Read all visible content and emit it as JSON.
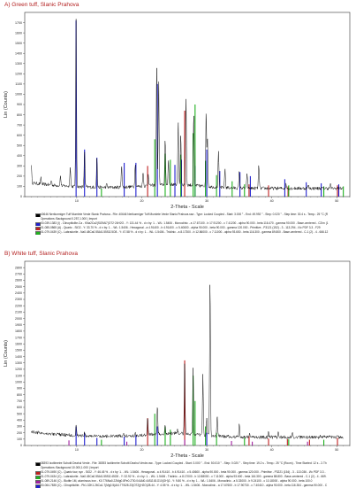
{
  "chart_data": [
    {
      "type": "line",
      "title": "A) Green tuff, Slanic Prahova",
      "xlabel": "2-Theta - Scale",
      "ylabel": "Lin (Counts)",
      "xlim": [
        2,
        52
      ],
      "ylim": [
        0,
        1800
      ],
      "xticks": [
        10,
        20,
        30,
        40,
        50
      ],
      "yticks": [
        0,
        100,
        200,
        300,
        400,
        500,
        600,
        700,
        800,
        900,
        1000,
        1100,
        1200,
        1300,
        1400,
        1500,
        1600,
        1700
      ],
      "pattern_peaks": [
        {
          "x": 3.0,
          "y": 320
        },
        {
          "x": 4.5,
          "y": 180
        },
        {
          "x": 6.1,
          "y": 160
        },
        {
          "x": 7.5,
          "y": 200
        },
        {
          "x": 9.0,
          "y": 300
        },
        {
          "x": 9.9,
          "y": 1720
        },
        {
          "x": 11.2,
          "y": 460
        },
        {
          "x": 13.1,
          "y": 380
        },
        {
          "x": 14.6,
          "y": 120
        },
        {
          "x": 16.9,
          "y": 320
        },
        {
          "x": 19.0,
          "y": 330
        },
        {
          "x": 20.2,
          "y": 250
        },
        {
          "x": 21.0,
          "y": 230
        },
        {
          "x": 22.3,
          "y": 1300
        },
        {
          "x": 22.6,
          "y": 1180
        },
        {
          "x": 23.6,
          "y": 560
        },
        {
          "x": 24.1,
          "y": 360
        },
        {
          "x": 25.6,
          "y": 760
        },
        {
          "x": 26.0,
          "y": 620
        },
        {
          "x": 26.8,
          "y": 980
        },
        {
          "x": 28.0,
          "y": 820
        },
        {
          "x": 29.9,
          "y": 860
        },
        {
          "x": 30.1,
          "y": 600
        },
        {
          "x": 31.8,
          "y": 450
        },
        {
          "x": 32.8,
          "y": 280
        },
        {
          "x": 35.0,
          "y": 240
        },
        {
          "x": 36.2,
          "y": 230
        },
        {
          "x": 38.0,
          "y": 320
        },
        {
          "x": 42.2,
          "y": 120
        },
        {
          "x": 45.6,
          "y": 110
        },
        {
          "x": 49.0,
          "y": 120
        }
      ],
      "sticks": [
        {
          "pattern": "Clinoptilolite-Ca",
          "color": "#2020d0",
          "peaks": [
            [
              9.9,
              1720
            ],
            [
              11.2,
              460
            ],
            [
              13.1,
              380
            ],
            [
              17.3,
              330
            ],
            [
              19.1,
              330
            ],
            [
              22.4,
              1100
            ],
            [
              25.1,
              310
            ],
            [
              26.1,
              360
            ],
            [
              28.2,
              300
            ],
            [
              30.0,
              460
            ],
            [
              32.0,
              250
            ],
            [
              35.1,
              240
            ],
            [
              36.7,
              200
            ],
            [
              42.0,
              170
            ],
            [
              45.3,
              140
            ],
            [
              47.6,
              130
            ],
            [
              50.3,
              120
            ]
          ]
        },
        {
          "pattern": "Quartz, low",
          "color": "#c02020",
          "peaks": [
            [
              20.9,
              300
            ],
            [
              26.6,
              840
            ],
            [
              36.5,
              120
            ],
            [
              39.5,
              110
            ],
            [
              42.5,
              100
            ],
            [
              50.1,
              110
            ]
          ]
        },
        {
          "pattern": "Labradorite",
          "color": "#20b020",
          "peaks": [
            [
              13.8,
              80
            ],
            [
              22.0,
              560
            ],
            [
              23.6,
              420
            ],
            [
              24.4,
              360
            ],
            [
              26.0,
              410
            ],
            [
              27.9,
              620
            ],
            [
              28.2,
              900
            ],
            [
              29.8,
              350
            ],
            [
              31.5,
              210
            ],
            [
              33.9,
              150
            ],
            [
              35.8,
              120
            ],
            [
              42.6,
              110
            ],
            [
              48.0,
              100
            ],
            [
              51.0,
              100
            ]
          ]
        }
      ]
    },
    {
      "type": "line",
      "title": "B) White tuff, Slanic Prahova",
      "xlabel": "2-Theta - Scale",
      "ylabel": "Lin (Counts)",
      "xlim": [
        2,
        52
      ],
      "ylim": [
        0,
        2900
      ],
      "xticks": [
        10,
        20,
        30,
        40,
        50
      ],
      "yticks": [
        0,
        100,
        200,
        300,
        400,
        500,
        600,
        700,
        800,
        900,
        1000,
        1100,
        1200,
        1300,
        1400,
        1500,
        1600,
        1700,
        1800,
        1900,
        2000,
        2100,
        2200,
        2300,
        2400,
        2500,
        2600,
        2700,
        2800
      ],
      "pattern_peaks": [
        {
          "x": 9.9,
          "y": 300
        },
        {
          "x": 11.2,
          "y": 200
        },
        {
          "x": 13.1,
          "y": 140
        },
        {
          "x": 17.2,
          "y": 170
        },
        {
          "x": 19.0,
          "y": 190
        },
        {
          "x": 20.9,
          "y": 430
        },
        {
          "x": 22.4,
          "y": 640
        },
        {
          "x": 23.6,
          "y": 300
        },
        {
          "x": 25.5,
          "y": 260
        },
        {
          "x": 26.6,
          "y": 1340
        },
        {
          "x": 27.9,
          "y": 1200
        },
        {
          "x": 29.4,
          "y": 1100
        },
        {
          "x": 30.0,
          "y": 440
        },
        {
          "x": 30.5,
          "y": 2650
        },
        {
          "x": 31.6,
          "y": 480
        },
        {
          "x": 35.0,
          "y": 330
        },
        {
          "x": 36.6,
          "y": 180
        },
        {
          "x": 39.5,
          "y": 200
        },
        {
          "x": 41.0,
          "y": 220
        },
        {
          "x": 43.2,
          "y": 200
        },
        {
          "x": 47.5,
          "y": 150
        },
        {
          "x": 50.1,
          "y": 140
        }
      ],
      "sticks": [
        {
          "pattern": "Quartz low",
          "color": "#c02020",
          "peaks": [
            [
              20.9,
              430
            ],
            [
              26.6,
              1340
            ],
            [
              36.5,
              150
            ],
            [
              39.5,
              110
            ],
            [
              42.4,
              100
            ],
            [
              45.8,
              90
            ],
            [
              50.1,
              120
            ]
          ]
        },
        {
          "pattern": "Labradorite",
          "color": "#20b020",
          "peaks": [
            [
              13.8,
              90
            ],
            [
              22.0,
              500
            ],
            [
              23.6,
              300
            ],
            [
              24.4,
              250
            ],
            [
              27.9,
              1100
            ],
            [
              28.2,
              700
            ],
            [
              29.8,
              300
            ],
            [
              31.5,
              200
            ],
            [
              35.8,
              120
            ],
            [
              42.6,
              100
            ],
            [
              48.0,
              90
            ]
          ]
        },
        {
          "pattern": "Biotite",
          "color": "#a020a0",
          "peaks": [
            [
              8.8,
              80
            ],
            [
              17.7,
              60
            ],
            [
              26.6,
              90
            ],
            [
              33.8,
              70
            ],
            [
              37.0,
              60
            ],
            [
              45.5,
              60
            ]
          ]
        },
        {
          "pattern": "Clinoptilolite",
          "color": "#2020d0",
          "peaks": [
            [
              9.9,
              300
            ],
            [
              11.2,
              200
            ],
            [
              13.1,
              120
            ],
            [
              17.3,
              140
            ],
            [
              19.1,
              160
            ],
            [
              22.4,
              300
            ],
            [
              30.0,
              200
            ]
          ]
        }
      ]
    }
  ],
  "legends": {
    "a": {
      "file_line": "40646 Nerikormiger Tuff Mumlete Verde Slanic Prahova - File: 40646 Nerikormiger Tuff Mumlete Verde Slanic Prahova.raw - Type: Locked Coupled - Start: 3.000 ° - End: 49.992 ° - Step: 0.020 ° - Step time: 30.4 s - Temp.: 25 °C (R",
      "operations": "Operations: Background 0.257,1.000 | Import",
      "rows": [
        {
          "color": "#2020d0",
          "text": "00-039-1383 (I) - Clinoptilolite-Ca - KNa2Ca2(Si29Al7)O72·24H2O - Y: 131.44 % - d x by: 1. - WL: 1.5406 - Monoclinic - a 17.67100 - b 17.91200 - c 7.41200 - alpha 90.000 - beta 116.470 - gamma 90.000 - Base-centered - C2/m (1"
        },
        {
          "color": "#c02020",
          "text": "01-085-0865 (A) - Quartz - SiO2 - Y: 33.70 % - d x by: 1. - WL: 1.5406 - Hexagonal - a 4.91400 - b 4.91400 - c 5.40600 - alpha 90.000 - beta 90.000 - gamma 120.000 - Primitive - P3121 (152) - 3 - 113.294 - I/Ic PDF 3.3 - F29"
        },
        {
          "color": "#20b020",
          "text": "01-079-0439 (C) - Labradorite - Na0.48Ca0.55Al1.55Si2.5O8 - Y: 47.58 % - d x by: 1. - WL: 1.5406 - Triclinic - a 8.17300 - b 12.86000 - c 7.11000 - alpha 93.650 - beta 116.300 - gamma 89.800 - Base-centered - C-1 (2) - 4 - 666.12"
        }
      ]
    },
    "b": {
      "file_line": "38393 Izotilmetre Sohotit Deahul Verde - File: 38393 Izotilmetre Sohotit Deahul Verde.raw - Type: Locked Coupled - Start: 3.000 ° - End: 50.010 ° - Step: 0.020 ° - Step time: 19.2 s - Temp.: 25 °C (Room) - Time Started: 12 s - 2-Th",
      "operations": "Operations: Background 10.000,1.000 | Import",
      "rows": [
        {
          "color": "#c02020",
          "text": "01-079-0490 (C) - Quartz low, syn - SiO2 - Y: 46.45 % - d x by: 1. - WL: 1.5406 - Hexagonal - a 4.91410 - b 4.91410 - c 5.40600 - alpha 90.000 - beta 90.000 - gamma 120.000 - Primitive - P3221 (154) - 3 - 113.036 - I/Ic PDF 3.3 -"
        },
        {
          "color": "#20b020",
          "text": "01-079-0434 (C) - Labradorite - Na0.45Ca0.55Al1.55Si2.45O8 - Y: 32.92 % - d x by: 1. - WL: 1.5406 - Triclinic - a 8.17000 - b 12.88000 - c 7.11000 - alpha 93.600 - beta 116.300 - gamma 88.800 - Base-centered - C-1 (2) - 4 - 669."
        },
        {
          "color": "#a020a0",
          "text": "01-089-2146 (C) - Biotite 1M, aluminous iron - K0.776Na0.22Mg0.8Fe0.2Ti0.044Al0.44Si2.81O10(OH)2 - Y: 9.80 % - d x by: 1. - WL: 1.5406 - Monoclinic - a 5.33000 - b 9.24100 - c 10.18000 - alpha 90.000 - beta 100.0"
        },
        {
          "color": "#2020d0",
          "text": "00-064-7835 (C) - Clinoptilolite - Pb1.32K1.26Ca1.7(Mg0.5(Al4.77Si28.23)O72)(H2O)28.44 - Y: 4.55 % - d x by: 1. - WL: 1.5406 - Monoclinic - a 17.67600 - b 17.90730 - c 7.40410 - alpha 90.000 - beta 116.304 - gamma 90.000 - C"
        }
      ]
    }
  }
}
